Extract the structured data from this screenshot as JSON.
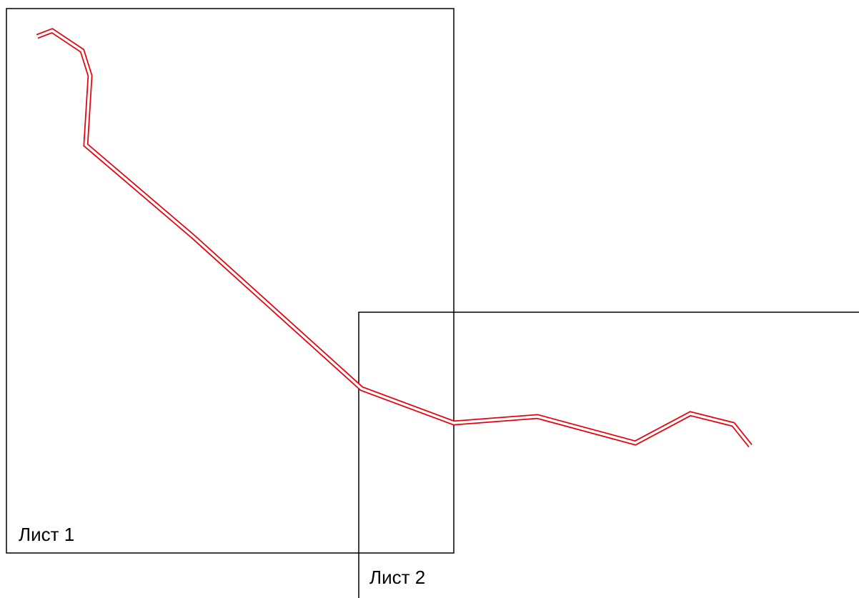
{
  "sheets": [
    {
      "label": "Лист 1"
    },
    {
      "label": "Лист 2"
    }
  ],
  "route": {
    "color": "#e8000b"
  }
}
